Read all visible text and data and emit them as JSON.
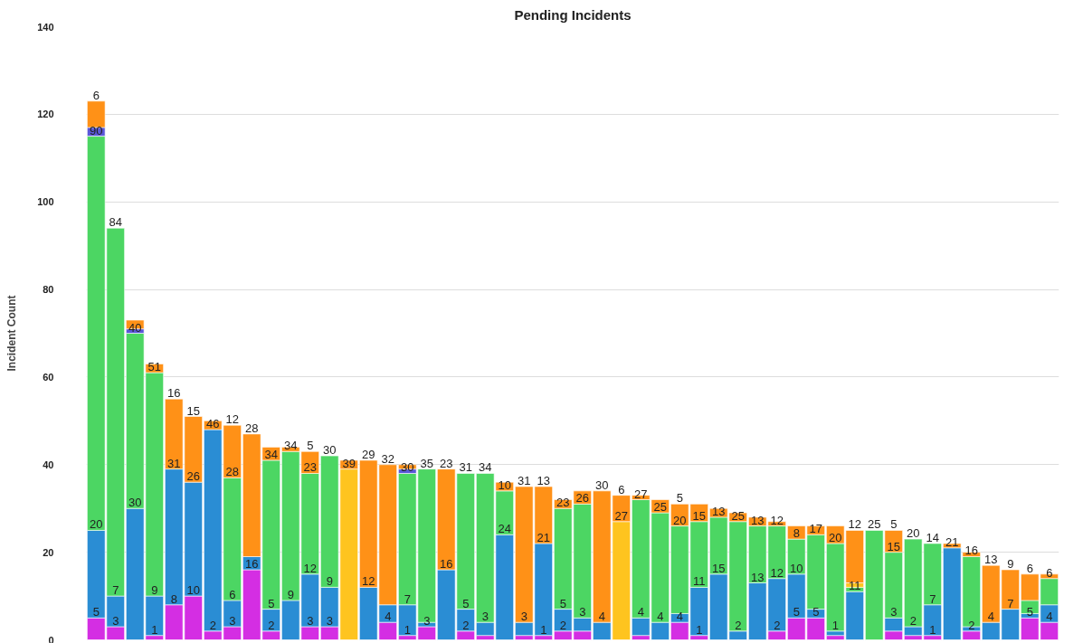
{
  "chart_data": {
    "type": "bar",
    "stacked": true,
    "title": "Pending Incidents",
    "ylabel": "Incident Count",
    "categories": [
      null,
      null,
      null,
      null,
      null,
      null,
      null,
      null,
      null,
      null,
      null,
      null,
      null,
      null,
      null,
      null,
      null,
      null,
      null,
      null,
      null,
      null,
      null,
      null,
      null,
      null,
      null,
      null,
      null,
      null,
      null,
      null,
      null,
      null,
      null,
      null,
      null,
      null,
      null,
      null,
      null,
      null,
      null,
      null,
      null,
      null,
      null,
      null,
      null,
      null
    ],
    "ylim": [
      0,
      140
    ],
    "yticks": [
      0,
      20,
      40,
      60,
      80,
      100,
      120,
      140
    ],
    "grid": "y",
    "tick_labels": "y",
    "series": [
      {
        "color": "#d42ee3",
        "values": [
          5,
          3,
          null,
          1,
          8,
          10,
          2,
          3,
          16,
          2,
          null,
          3,
          3,
          null,
          null,
          4,
          1,
          3,
          null,
          2,
          1,
          null,
          1,
          1,
          2,
          2,
          null,
          null,
          1,
          null,
          4,
          1,
          null,
          null,
          null,
          2,
          5,
          5,
          1,
          null,
          null,
          2,
          1,
          1,
          null,
          2,
          null,
          null,
          5,
          4
        ],
        "value_labels": [
          "5",
          "3",
          null,
          "1",
          "8",
          "10",
          "2",
          "3",
          "16",
          "2",
          null,
          "3",
          "3",
          null,
          null,
          "4",
          "1",
          "3",
          null,
          "2",
          null,
          null,
          null,
          "1",
          "2",
          null,
          null,
          null,
          null,
          null,
          "4",
          "1",
          null,
          null,
          null,
          "2",
          "5",
          "5",
          null,
          null,
          null,
          null,
          null,
          "1",
          null,
          "2",
          null,
          null,
          "5",
          "4"
        ]
      },
      {
        "color": "#2a8dd4",
        "values": [
          20,
          7,
          30,
          9,
          31,
          26,
          46,
          6,
          3,
          5,
          9,
          12,
          9,
          null,
          12,
          4,
          7,
          1,
          16,
          5,
          3,
          24,
          3,
          21,
          5,
          3,
          4,
          null,
          4,
          4,
          2,
          11,
          15,
          2,
          13,
          12,
          10,
          2,
          1,
          11,
          null,
          3,
          2,
          7,
          21,
          1,
          4,
          7,
          1,
          4
        ],
        "value_labels": [
          "20",
          "7",
          "30",
          "9",
          "31",
          "26",
          "46",
          "6",
          null,
          "5",
          "9",
          "12",
          "9",
          null,
          "12",
          null,
          "7",
          null,
          "16",
          "5",
          "3",
          "24",
          "3",
          "21",
          "5",
          "3",
          "4",
          null,
          "4",
          "4",
          null,
          "11",
          "15",
          "2",
          "13",
          "12",
          "10",
          null,
          "1",
          "11",
          null,
          "3",
          "2",
          "7",
          "21",
          null,
          "4",
          "7",
          null,
          null
        ]
      },
      {
        "color": "#4cd663",
        "values": [
          90,
          84,
          40,
          51,
          null,
          null,
          null,
          28,
          null,
          34,
          34,
          23,
          30,
          null,
          null,
          null,
          30,
          35,
          null,
          31,
          34,
          10,
          null,
          null,
          23,
          26,
          null,
          null,
          27,
          25,
          20,
          15,
          13,
          25,
          13,
          12,
          8,
          17,
          20,
          1,
          25,
          15,
          20,
          14,
          null,
          16,
          null,
          null,
          3,
          6
        ],
        "value_labels": [
          "90",
          "84",
          "40",
          "51",
          null,
          null,
          null,
          "28",
          null,
          "34",
          "34",
          "23",
          "30",
          null,
          null,
          null,
          "30",
          "35",
          null,
          "31",
          "34",
          "10",
          null,
          null,
          "23",
          "26",
          null,
          null,
          "27",
          "25",
          "20",
          "15",
          "13",
          "25",
          "13",
          "12",
          "8",
          "17",
          "20",
          null,
          "25",
          "15",
          "20",
          "14",
          null,
          "16",
          null,
          null,
          null,
          "6"
        ]
      },
      {
        "color": "#fec41f",
        "values": [
          null,
          null,
          null,
          null,
          null,
          null,
          null,
          null,
          null,
          null,
          null,
          null,
          null,
          39,
          null,
          null,
          null,
          null,
          null,
          null,
          null,
          null,
          null,
          null,
          null,
          null,
          null,
          27,
          null,
          null,
          null,
          null,
          null,
          null,
          null,
          null,
          null,
          null,
          null,
          1,
          null,
          null,
          null,
          null,
          null,
          null,
          null,
          null,
          null,
          null
        ],
        "value_labels": [
          null,
          null,
          null,
          null,
          null,
          null,
          null,
          null,
          null,
          null,
          null,
          null,
          null,
          "39",
          null,
          null,
          null,
          null,
          null,
          null,
          null,
          null,
          null,
          null,
          null,
          null,
          null,
          "27",
          null,
          null,
          null,
          null,
          null,
          null,
          null,
          null,
          null,
          null,
          null,
          null,
          null,
          null,
          null,
          null,
          null,
          null,
          null,
          null,
          null,
          null
        ]
      },
      {
        "color": "#5a57d9",
        "values": [
          2,
          null,
          1,
          null,
          null,
          null,
          null,
          null,
          null,
          null,
          null,
          null,
          null,
          null,
          null,
          null,
          1,
          null,
          null,
          null,
          null,
          null,
          null,
          null,
          null,
          null,
          null,
          null,
          null,
          null,
          null,
          null,
          null,
          null,
          null,
          null,
          null,
          null,
          null,
          null,
          null,
          null,
          null,
          null,
          null,
          null,
          null,
          null,
          null,
          null
        ]
      },
      {
        "color": "#ff9117",
        "values": [
          6,
          null,
          2,
          2,
          16,
          15,
          2,
          12,
          28,
          3,
          1,
          5,
          null,
          2,
          29,
          32,
          1,
          null,
          23,
          null,
          null,
          2,
          31,
          13,
          2,
          3,
          30,
          6,
          1,
          3,
          5,
          4,
          2,
          2,
          2,
          1,
          3,
          2,
          4,
          12,
          null,
          5,
          null,
          null,
          1,
          1,
          13,
          9,
          6,
          1
        ],
        "value_labels": [
          "6",
          null,
          null,
          null,
          "16",
          "15",
          null,
          "12",
          "28",
          null,
          null,
          "5",
          null,
          null,
          "29",
          "32",
          null,
          null,
          "23",
          null,
          null,
          null,
          "31",
          "13",
          null,
          null,
          "30",
          "6",
          null,
          null,
          "5",
          null,
          null,
          null,
          null,
          null,
          null,
          null,
          null,
          "12",
          null,
          "5",
          null,
          null,
          null,
          null,
          "13",
          "9",
          "6",
          null
        ]
      }
    ]
  }
}
